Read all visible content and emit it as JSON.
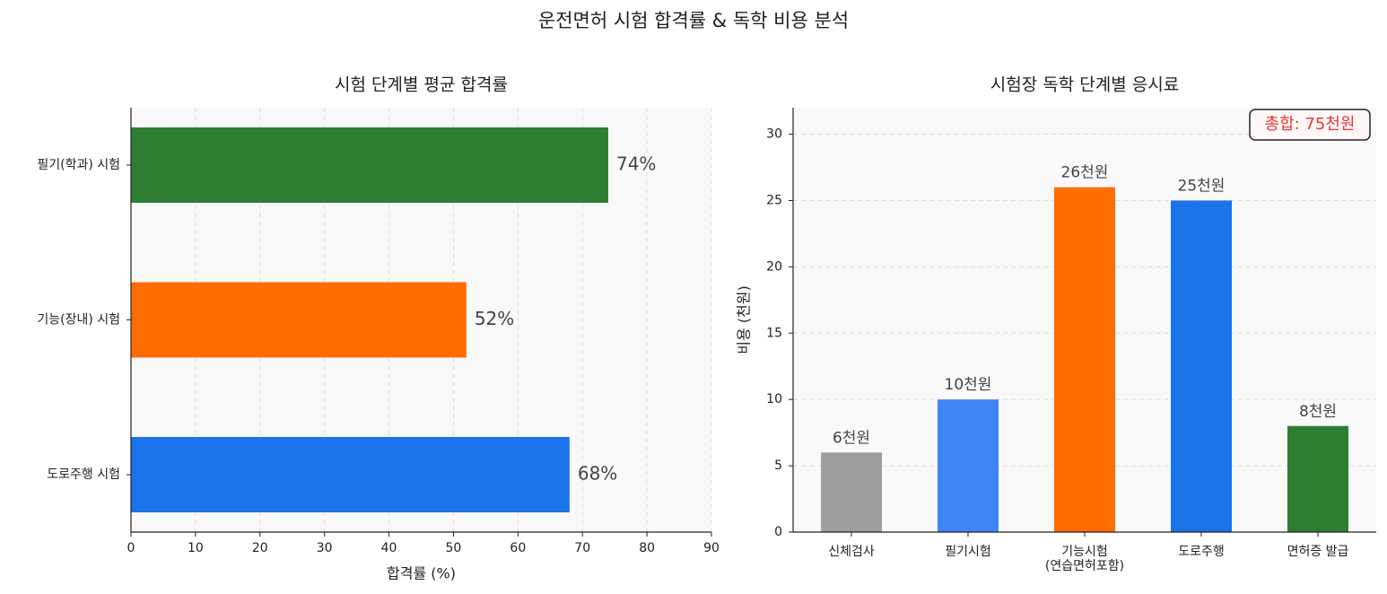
{
  "title": "운전면허 시험 합격률 & 독학 비용 분석",
  "chart_data": [
    {
      "type": "bar",
      "orientation": "horizontal",
      "title": "시험 단계별 평균 합격률",
      "categories": [
        "필기(학과) 시험",
        "기능(장내) 시험",
        "도로주행 시험"
      ],
      "values": [
        74,
        52,
        68
      ],
      "value_labels": [
        "74%",
        "52%",
        "68%"
      ],
      "colors": [
        "#2e7d32",
        "#ff6d00",
        "#1a73e8"
      ],
      "xlabel": "합격률 (%)",
      "xlim": [
        0,
        90
      ],
      "xticks": [
        0,
        10,
        20,
        30,
        40,
        50,
        60,
        70,
        80,
        90
      ],
      "grid": true
    },
    {
      "type": "bar",
      "orientation": "vertical",
      "title": "시험장 독학 단계별 응시료",
      "categories": [
        "신체검사",
        "필기시험",
        "기능시험\n(연습면허포함)",
        "도로주행",
        "면허증 발급"
      ],
      "values": [
        6,
        10,
        26,
        25,
        8
      ],
      "value_labels": [
        "6천원",
        "10천원",
        "26천원",
        "25천원",
        "8천원"
      ],
      "colors": [
        "#9e9e9e",
        "#4285f4",
        "#ff6d00",
        "#1a73e8",
        "#2e7d32"
      ],
      "ylabel": "비용 (천원)",
      "ylim": [
        0,
        32
      ],
      "yticks": [
        0,
        5,
        10,
        15,
        20,
        25,
        30
      ],
      "grid": true,
      "annotation": "총합: 75천원"
    }
  ]
}
